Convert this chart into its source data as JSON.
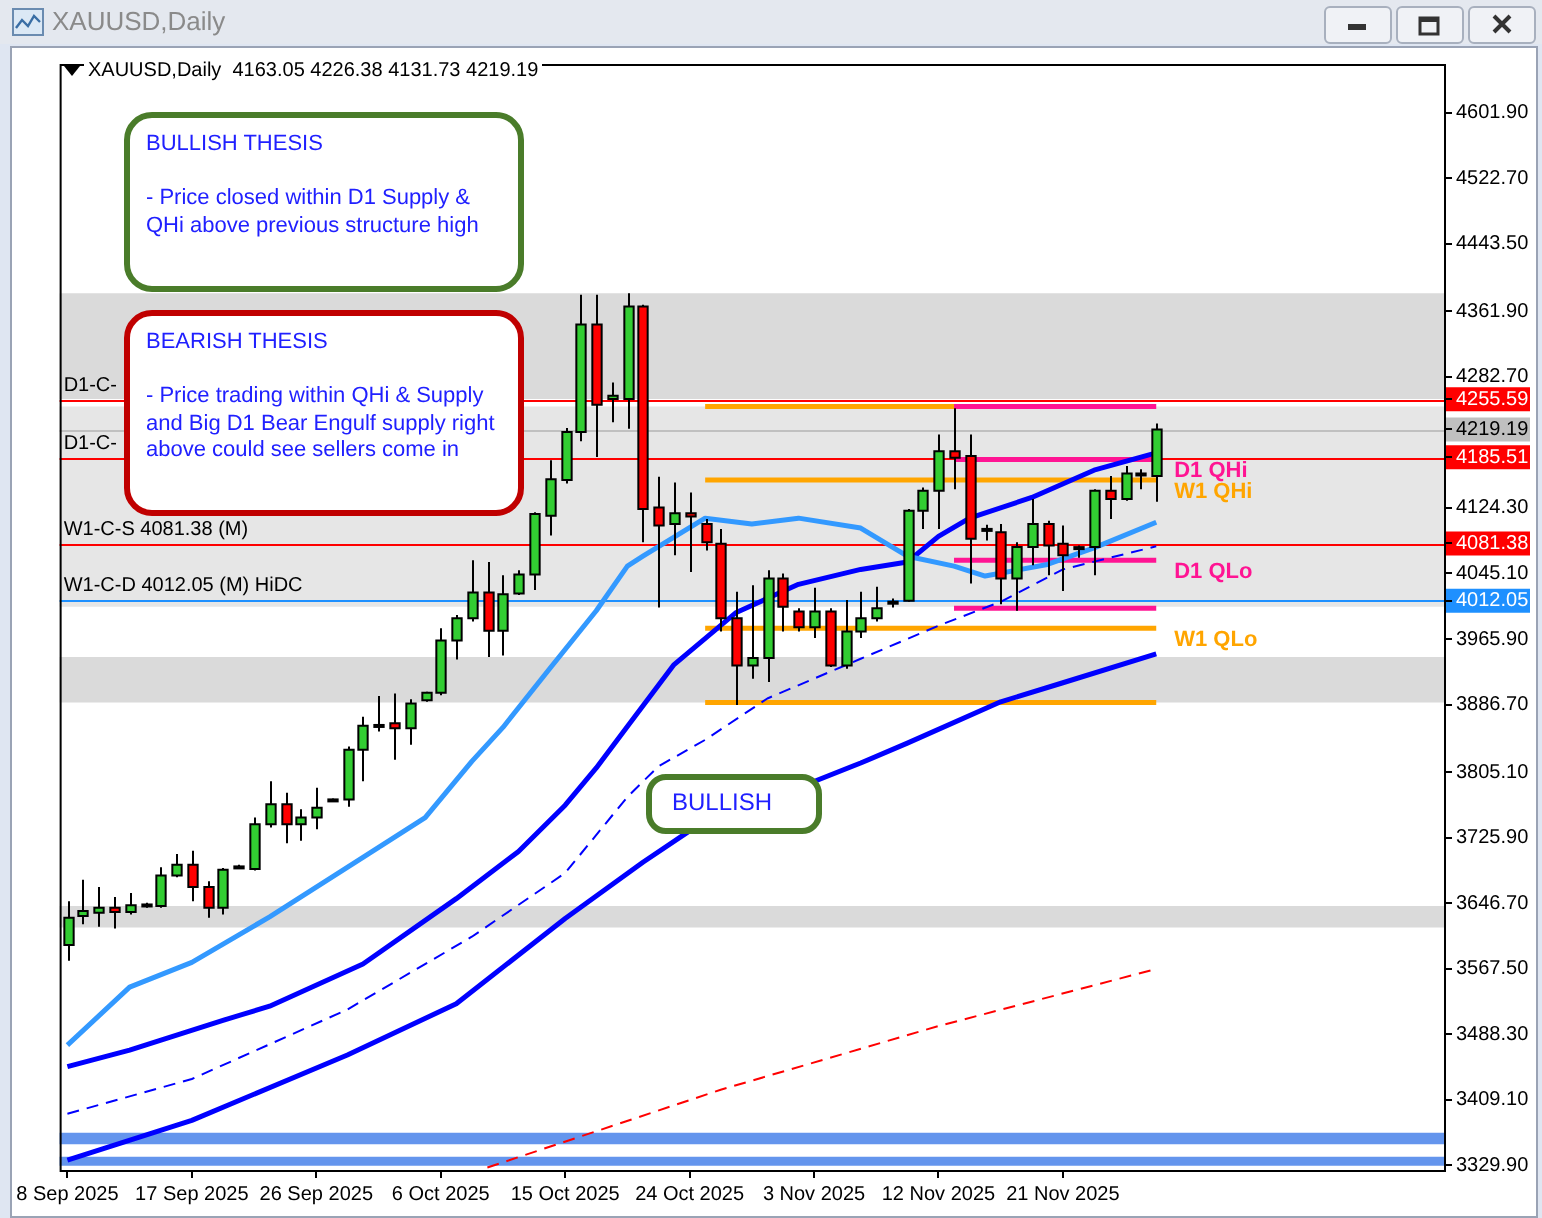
{
  "chart_data": {
    "type": "candlestick",
    "title": "XAUUSD,Daily",
    "subtitle": "4163.05 4226.38 4131.73 4219.19",
    "categories": [
      "8 Sep 2025",
      null,
      null,
      null,
      null,
      null,
      null,
      null,
      "17 Sep 2025",
      null,
      null,
      null,
      null,
      null,
      null,
      null,
      "26 Sep 2025",
      null,
      null,
      null,
      null,
      null,
      null,
      null,
      "6 Oct 2025",
      null,
      null,
      null,
      null,
      null,
      null,
      null,
      "15 Oct 2025",
      null,
      null,
      null,
      null,
      null,
      null,
      null,
      "24 Oct 2025",
      null,
      null,
      null,
      null,
      null,
      null,
      null,
      "3 Nov 2025",
      null,
      null,
      null,
      null,
      null,
      null,
      null,
      "12 Nov 2025",
      null,
      null,
      null,
      null,
      null,
      null,
      null,
      "21 Nov 2025",
      null,
      null,
      null,
      null,
      null,
      null,
      null,
      null,
      null,
      null,
      null,
      null,
      null,
      null,
      null,
      null,
      null,
      null,
      null,
      null,
      null,
      null,
      null,
      null
    ],
    "ohlc": [
      [
        3596,
        3649,
        3577,
        3629
      ],
      [
        3631,
        3675,
        3621,
        3637
      ],
      [
        3635,
        3666,
        3618,
        3641
      ],
      [
        3641,
        3654,
        3616,
        3636
      ],
      [
        3636,
        3659,
        3633,
        3644
      ],
      [
        3643,
        3647,
        3641,
        3645
      ],
      [
        3643,
        3690,
        3641,
        3680
      ],
      [
        3680,
        3706,
        3678,
        3693
      ],
      [
        3693,
        3710,
        3649,
        3666
      ],
      [
        3666,
        3673,
        3629,
        3641
      ],
      [
        3641,
        3689,
        3633,
        3687
      ],
      [
        3690,
        3693,
        3688,
        3691
      ],
      [
        3688,
        3750,
        3686,
        3742
      ],
      [
        3742,
        3794,
        3738,
        3766
      ],
      [
        3766,
        3780,
        3719,
        3742
      ],
      [
        3742,
        3760,
        3722,
        3750
      ],
      [
        3750,
        3786,
        3736,
        3762
      ],
      [
        3771,
        3773,
        3770,
        3772
      ],
      [
        3772,
        3836,
        3763,
        3832
      ],
      [
        3832,
        3872,
        3794,
        3861
      ],
      [
        3861,
        3897,
        3854,
        3862
      ],
      [
        3864,
        3900,
        3820,
        3858
      ],
      [
        3858,
        3893,
        3838,
        3888
      ],
      [
        3892,
        3902,
        3890,
        3901
      ],
      [
        3901,
        3979,
        3898,
        3964
      ],
      [
        3964,
        3995,
        3941,
        3991
      ],
      [
        3991,
        4061,
        3987,
        4022
      ],
      [
        4022,
        4059,
        3944,
        3976
      ],
      [
        3976,
        4043,
        3946,
        4020
      ],
      [
        4021,
        4049,
        4019,
        4044
      ],
      [
        4044,
        4119,
        4025,
        4117
      ],
      [
        4115,
        4182,
        4091,
        4159
      ],
      [
        4158,
        4221,
        4154,
        4216
      ],
      [
        4216,
        4382,
        4205,
        4346
      ],
      [
        4346,
        4382,
        4186,
        4249
      ],
      [
        4256,
        4276,
        4228,
        4260
      ],
      [
        4256,
        4384,
        4220,
        4368
      ],
      [
        4368,
        4370,
        4083,
        4123
      ],
      [
        4125,
        4162,
        4004,
        4103
      ],
      [
        4105,
        4155,
        4067,
        4118
      ],
      [
        4118,
        4143,
        4047,
        4114
      ],
      [
        4105,
        4111,
        4073,
        4083
      ],
      [
        4081,
        4099,
        3975,
        3991
      ],
      [
        3991,
        4023,
        3886,
        3934
      ],
      [
        3934,
        4031,
        3918,
        3943
      ],
      [
        3943,
        4049,
        3914,
        4039
      ],
      [
        4039,
        4045,
        3975,
        4005
      ],
      [
        3999,
        4003,
        3975,
        3980
      ],
      [
        3980,
        4028,
        3967,
        3999
      ],
      [
        3999,
        4003,
        3932,
        3934
      ],
      [
        3934,
        4013,
        3930,
        3975
      ],
      [
        3975,
        4023,
        3967,
        3991
      ],
      [
        3991,
        4029,
        3987,
        4003
      ],
      [
        4010,
        4015,
        4004,
        4011
      ],
      [
        4012,
        4123,
        4011,
        4121
      ],
      [
        4121,
        4149,
        4099,
        4145
      ],
      [
        4145,
        4213,
        4099,
        4193
      ],
      [
        4193,
        4245,
        4147,
        4185
      ],
      [
        4187,
        4213,
        4033,
        4087
      ],
      [
        4098,
        4104,
        4085,
        4099
      ],
      [
        4095,
        4105,
        4008,
        4039
      ],
      [
        4039,
        4083,
        4000,
        4077
      ],
      [
        4077,
        4135,
        4055,
        4105
      ],
      [
        4105,
        4109,
        4043,
        4079
      ],
      [
        4081,
        4103,
        4024,
        4067
      ],
      [
        4076,
        4079,
        4064,
        4077
      ],
      [
        4077,
        4147,
        4043,
        4145
      ],
      [
        4145,
        4163,
        4111,
        4135
      ],
      [
        4135,
        4175,
        4133,
        4166
      ],
      [
        4165,
        4171,
        4147,
        4166
      ],
      [
        4163.05,
        4226.38,
        4131.73,
        4219.19
      ],
      null,
      null,
      null,
      null,
      null,
      null,
      null,
      null,
      null,
      null,
      null,
      null,
      null,
      null,
      null,
      null,
      null,
      null
    ],
    "colors": [
      "#32cd32",
      "#32cd32",
      "#32cd32",
      "#ff0000",
      "#32cd32",
      "#000000",
      "#32cd32",
      "#32cd32",
      "#ff0000",
      "#ff0000",
      "#32cd32",
      "#000000",
      "#32cd32",
      "#32cd32",
      "#ff0000",
      "#32cd32",
      "#32cd32",
      "#000000",
      "#32cd32",
      "#32cd32",
      "#000000",
      "#ff0000",
      "#32cd32",
      "#32cd32",
      "#32cd32",
      "#32cd32",
      "#32cd32",
      "#ff0000",
      "#32cd32",
      "#32cd32",
      "#32cd32",
      "#32cd32",
      "#32cd32",
      "#32cd32",
      "#ff0000",
      "#32cd32",
      "#32cd32",
      "#ff0000",
      "#ff0000",
      "#32cd32",
      "#ff0000",
      "#ff0000",
      "#ff0000",
      "#ff0000",
      "#32cd32",
      "#32cd32",
      "#ff0000",
      "#ff0000",
      "#32cd32",
      "#ff0000",
      "#32cd32",
      "#32cd32",
      "#32cd32",
      "#000000",
      "#32cd32",
      "#32cd32",
      "#32cd32",
      "#ff0000",
      "#ff0000",
      "#000000",
      "#ff0000",
      "#32cd32",
      "#32cd32",
      "#ff0000",
      "#ff0000",
      "#000000",
      "#32cd32",
      "#ff0000",
      "#32cd32",
      "#000000",
      "#32cd32",
      null,
      null,
      null,
      null,
      null,
      null,
      null,
      null,
      null,
      null,
      null,
      null,
      null,
      null,
      null,
      null,
      null,
      null
    ],
    "series": [
      {
        "type": "line",
        "color": "#3399ff",
        "line_style": "solid",
        "values": [
          3475,
          null,
          null,
          null,
          3545,
          null,
          null,
          null,
          3575,
          null,
          null,
          null,
          null,
          3630,
          null,
          null,
          null,
          null,
          null,
          3702,
          null,
          null,
          null,
          3750,
          null,
          null,
          3818,
          null,
          3859,
          null,
          null,
          3930,
          null,
          null,
          4000,
          null,
          4054,
          4066,
          null,
          null,
          null,
          4112,
          null,
          null,
          4105,
          null,
          null,
          4112,
          null,
          null,
          null,
          4100,
          null,
          null,
          4066,
          null,
          null,
          4054,
          null,
          4042,
          null,
          null,
          null,
          4056,
          null,
          null,
          4076,
          null,
          null,
          null,
          4107,
          null,
          null,
          null,
          null,
          null,
          null,
          null,
          null,
          null,
          null,
          null,
          null,
          null,
          null,
          null,
          null,
          null,
          null
        ]
      },
      {
        "type": "line",
        "color": "#0000ff",
        "line_style": "solid",
        "values": [
          3449,
          null,
          null,
          null,
          3469,
          null,
          null,
          null,
          null,
          null,
          3505,
          null,
          null,
          3522,
          null,
          null,
          null,
          null,
          null,
          3573,
          null,
          null,
          null,
          null,
          null,
          3652,
          null,
          null,
          null,
          3709,
          null,
          null,
          3765,
          null,
          3810,
          null,
          3860,
          null,
          null,
          3935,
          null,
          null,
          null,
          3998,
          null,
          null,
          null,
          4032,
          null,
          null,
          null,
          4050,
          null,
          null,
          4059,
          null,
          4090,
          null,
          4112,
          null,
          null,
          null,
          4137,
          null,
          null,
          null,
          4170,
          null,
          null,
          null,
          4191,
          null,
          null,
          null,
          null,
          null,
          null,
          null,
          null,
          null,
          null,
          null,
          null,
          null,
          null,
          null,
          null,
          null,
          null
        ]
      },
      {
        "type": "line",
        "color": "#0000ff",
        "line_style": "dashed",
        "values": [
          3392,
          null,
          null,
          null,
          null,
          null,
          null,
          null,
          3434,
          null,
          null,
          null,
          null,
          null,
          null,
          null,
          null,
          null,
          3518,
          null,
          null,
          null,
          null,
          null,
          null,
          null,
          3606,
          null,
          null,
          null,
          null,
          null,
          3683,
          null,
          null,
          null,
          3775,
          null,
          3812,
          null,
          null,
          3844,
          null,
          null,
          null,
          3894,
          null,
          null,
          null,
          null,
          null,
          3942,
          null,
          null,
          null,
          null,
          3982,
          null,
          null,
          null,
          4011,
          null,
          null,
          null,
          4050,
          null,
          null,
          null,
          null,
          null,
          4078,
          null,
          null,
          null,
          null,
          null,
          null,
          null,
          null,
          null,
          null,
          null,
          null,
          null,
          null,
          null,
          null,
          null,
          null
        ]
      },
      {
        "type": "line",
        "color": "#0000ff",
        "line_style": "solid",
        "values": [
          3336,
          null,
          null,
          null,
          null,
          null,
          null,
          null,
          3384,
          null,
          null,
          null,
          null,
          null,
          null,
          null,
          null,
          null,
          3463,
          null,
          null,
          null,
          null,
          null,
          null,
          3525,
          null,
          null,
          null,
          null,
          null,
          null,
          3628,
          null,
          null,
          null,
          null,
          3696,
          null,
          null,
          3734,
          null,
          null,
          null,
          null,
          null,
          null,
          null,
          null,
          null,
          null,
          3816,
          null,
          null,
          3840,
          null,
          null,
          null,
          null,
          null,
          3890,
          null,
          null,
          null,
          3913,
          null,
          null,
          null,
          null,
          null,
          3948,
          null,
          null,
          null,
          null,
          null,
          null,
          null,
          null,
          null,
          null,
          null,
          null,
          null,
          null,
          null,
          null,
          null,
          null
        ]
      },
      {
        "type": "line",
        "color": "#ff0000",
        "line_style": "dashed",
        "values": [
          null,
          null,
          null,
          null,
          null,
          null,
          null,
          null,
          null,
          null,
          null,
          null,
          null,
          null,
          null,
          null,
          null,
          null,
          null,
          null,
          null,
          null,
          null,
          null,
          null,
          null,
          null,
          3327,
          null,
          null,
          null,
          null,
          null,
          null,
          null,
          null,
          null,
          null,
          null,
          null,
          null,
          null,
          3421,
          null,
          null,
          null,
          null,
          null,
          null,
          null,
          null,
          null,
          null,
          null,
          null,
          null,
          3498,
          null,
          null,
          null,
          null,
          null,
          null,
          null,
          null,
          null,
          null,
          null,
          null,
          null,
          3567,
          null,
          null,
          null,
          null,
          null,
          null,
          null,
          null,
          null,
          null,
          null,
          null,
          null,
          null,
          null,
          null,
          null,
          null
        ]
      },
      {
        "type": "line",
        "color": "#ffa500",
        "line_style": "solid",
        "values": [
          null,
          null,
          null,
          null,
          null,
          null,
          null,
          null,
          null,
          null,
          null,
          null,
          null,
          null,
          null,
          null,
          null,
          null,
          null,
          null,
          null,
          null,
          null,
          null,
          null,
          null,
          null,
          null,
          null,
          null,
          null,
          null,
          null,
          null,
          null,
          null,
          null,
          null,
          null,
          null,
          null,
          4247,
          null,
          null,
          null,
          null,
          null,
          null,
          null,
          null,
          null,
          null,
          null,
          null,
          null,
          null,
          null,
          4247,
          null,
          null,
          null,
          null,
          null,
          null,
          null,
          null,
          null,
          null,
          null,
          null,
          null,
          null,
          null,
          null,
          null,
          null,
          null,
          null,
          null,
          null,
          null,
          null,
          null,
          null,
          null,
          null,
          null,
          null,
          null
        ]
      },
      {
        "type": "line",
        "color": "#ff1493",
        "line_style": "solid",
        "values": [
          null,
          null,
          null,
          null,
          null,
          null,
          null,
          null,
          null,
          null,
          null,
          null,
          null,
          null,
          null,
          null,
          null,
          null,
          null,
          null,
          null,
          null,
          null,
          null,
          null,
          null,
          null,
          null,
          null,
          null,
          null,
          null,
          null,
          null,
          null,
          null,
          null,
          null,
          null,
          null,
          null,
          null,
          null,
          null,
          null,
          null,
          null,
          null,
          null,
          null,
          null,
          null,
          null,
          null,
          null,
          null,
          null,
          4247,
          null,
          null,
          null,
          null,
          null,
          null,
          null,
          null,
          null,
          null,
          null,
          null,
          4247,
          null,
          null,
          null,
          null,
          null,
          null,
          null,
          null,
          null,
          null,
          null,
          null,
          null,
          null,
          null,
          null,
          null,
          null
        ]
      },
      {
        "type": "line",
        "name": "D1 QHi",
        "color": "#ff1493",
        "line_style": "solid",
        "values": [
          null,
          null,
          null,
          null,
          null,
          null,
          null,
          null,
          null,
          null,
          null,
          null,
          null,
          null,
          null,
          null,
          null,
          null,
          null,
          null,
          null,
          null,
          null,
          null,
          null,
          null,
          null,
          null,
          null,
          null,
          null,
          null,
          null,
          null,
          null,
          null,
          null,
          null,
          null,
          null,
          null,
          null,
          null,
          null,
          null,
          null,
          null,
          null,
          null,
          null,
          null,
          null,
          null,
          null,
          null,
          null,
          null,
          4183,
          null,
          null,
          null,
          null,
          null,
          null,
          null,
          null,
          null,
          null,
          null,
          null,
          4183,
          null,
          null,
          null,
          null,
          null,
          null,
          null,
          null,
          null,
          null,
          null,
          null,
          null,
          null,
          null,
          null,
          null,
          null
        ]
      },
      {
        "type": "line",
        "name": "W1 QHi",
        "color": "#ffa500",
        "line_style": "solid",
        "values": [
          null,
          null,
          null,
          null,
          null,
          null,
          null,
          null,
          null,
          null,
          null,
          null,
          null,
          null,
          null,
          null,
          null,
          null,
          null,
          null,
          null,
          null,
          null,
          null,
          null,
          null,
          null,
          null,
          null,
          null,
          null,
          null,
          null,
          null,
          null,
          null,
          null,
          null,
          null,
          null,
          null,
          4158,
          null,
          null,
          null,
          null,
          null,
          null,
          null,
          null,
          null,
          null,
          null,
          null,
          null,
          null,
          null,
          null,
          null,
          null,
          null,
          null,
          null,
          null,
          null,
          null,
          null,
          null,
          null,
          null,
          4158,
          null,
          null,
          null,
          null,
          null,
          null,
          null,
          null,
          null,
          null,
          null,
          null,
          null,
          null,
          null,
          null,
          null,
          null
        ]
      },
      {
        "type": "line",
        "name": "D1 QLo",
        "color": "#ff1493",
        "line_style": "solid",
        "values": [
          null,
          null,
          null,
          null,
          null,
          null,
          null,
          null,
          null,
          null,
          null,
          null,
          null,
          null,
          null,
          null,
          null,
          null,
          null,
          null,
          null,
          null,
          null,
          null,
          null,
          null,
          null,
          null,
          null,
          null,
          null,
          null,
          null,
          null,
          null,
          null,
          null,
          null,
          null,
          null,
          null,
          null,
          null,
          null,
          null,
          null,
          null,
          null,
          null,
          null,
          null,
          null,
          null,
          null,
          null,
          null,
          null,
          4061,
          null,
          null,
          null,
          null,
          null,
          null,
          null,
          null,
          null,
          null,
          null,
          null,
          4061,
          null,
          null,
          null,
          null,
          null,
          null,
          null,
          null,
          null,
          null,
          null,
          null,
          null,
          null,
          null,
          null,
          null,
          null
        ]
      },
      {
        "type": "line",
        "color": "#ff1493",
        "line_style": "solid",
        "values": [
          null,
          null,
          null,
          null,
          null,
          null,
          null,
          null,
          null,
          null,
          null,
          null,
          null,
          null,
          null,
          null,
          null,
          null,
          null,
          null,
          null,
          null,
          null,
          null,
          null,
          null,
          null,
          null,
          null,
          null,
          null,
          null,
          null,
          null,
          null,
          null,
          null,
          null,
          null,
          null,
          null,
          null,
          null,
          null,
          null,
          null,
          null,
          null,
          null,
          null,
          null,
          null,
          null,
          null,
          null,
          null,
          null,
          4003,
          null,
          null,
          null,
          null,
          null,
          null,
          null,
          null,
          null,
          null,
          null,
          null,
          4003,
          null,
          null,
          null,
          null,
          null,
          null,
          null,
          null,
          null,
          null,
          null,
          null,
          null,
          null,
          null,
          null,
          null,
          null
        ]
      },
      {
        "type": "line",
        "name": "W1 QLo",
        "color": "#ffa500",
        "line_style": "solid",
        "values": [
          null,
          null,
          null,
          null,
          null,
          null,
          null,
          null,
          null,
          null,
          null,
          null,
          null,
          null,
          null,
          null,
          null,
          null,
          null,
          null,
          null,
          null,
          null,
          null,
          null,
          null,
          null,
          null,
          null,
          null,
          null,
          null,
          null,
          null,
          null,
          null,
          null,
          null,
          null,
          null,
          null,
          3979,
          null,
          null,
          null,
          null,
          null,
          null,
          null,
          null,
          null,
          null,
          null,
          null,
          null,
          null,
          null,
          null,
          null,
          null,
          null,
          null,
          null,
          null,
          null,
          null,
          null,
          null,
          null,
          null,
          3979,
          null,
          null,
          null,
          null,
          null,
          null,
          null,
          null,
          null,
          null,
          null,
          null,
          null,
          null,
          null,
          null,
          null,
          null
        ]
      },
      {
        "type": "line",
        "color": "#ffa500",
        "line_style": "solid",
        "values": [
          null,
          null,
          null,
          null,
          null,
          null,
          null,
          null,
          null,
          null,
          null,
          null,
          null,
          null,
          null,
          null,
          null,
          null,
          null,
          null,
          null,
          null,
          null,
          null,
          null,
          null,
          null,
          null,
          null,
          null,
          null,
          null,
          null,
          null,
          null,
          null,
          null,
          null,
          null,
          null,
          null,
          3889,
          null,
          null,
          null,
          null,
          null,
          null,
          null,
          null,
          null,
          null,
          null,
          null,
          null,
          null,
          null,
          null,
          null,
          null,
          null,
          null,
          null,
          null,
          null,
          null,
          null,
          null,
          null,
          null,
          3889,
          null,
          null,
          null,
          null,
          null,
          null,
          null,
          null,
          null,
          null,
          null,
          null,
          null,
          null,
          null,
          null,
          null,
          null
        ]
      }
    ],
    "ylim": [
      3324,
      4661
    ],
    "yticks": [
      {
        "value": 4601.9,
        "label": "4601.90"
      },
      {
        "value": 4522.7,
        "label": "4522.70"
      },
      {
        "value": 4443.5,
        "label": "4443.50"
      },
      {
        "value": 4361.9,
        "label": "4361.90"
      },
      {
        "value": 4282.7,
        "label": "4282.70"
      },
      4255.59,
      4219.19,
      4185.51,
      {
        "value": 4124.3,
        "label": "4124.30"
      },
      4081.38,
      {
        "value": 4045.1,
        "label": "4045.10"
      },
      4012.05,
      {
        "value": 3965.9,
        "label": "3965.90"
      },
      {
        "value": 3886.7,
        "label": "3886.70"
      },
      {
        "value": 3805.1,
        "label": "3805.10"
      },
      {
        "value": 3725.9,
        "label": "3725.90"
      },
      {
        "value": 3646.7,
        "label": "3646.70"
      },
      {
        "value": 3567.5,
        "label": "3567.50"
      },
      {
        "value": 3488.3,
        "label": "3488.30"
      },
      {
        "value": 3409.1,
        "label": "3409.10"
      },
      {
        "value": 3329.9,
        "label": "3329.90"
      }
    ],
    "grid": false,
    "ref_lines": [
      {
        "axis": "y",
        "value": 4255.59,
        "label": "D1-C-",
        "color": "#ff0000"
      },
      {
        "axis": "y",
        "value": 4219.19,
        "color": "#c0c0c0"
      },
      {
        "axis": "y",
        "value": 4185.51,
        "label": "D1-C-",
        "color": "#ff0000"
      },
      {
        "axis": "y",
        "value": 4081.38,
        "label": "W1-C-S 4081.38 (M)",
        "color": "#ff0000"
      },
      {
        "axis": "y",
        "value": 4012.05,
        "label": "W1-C-D 4012.05 (M) HiDC",
        "color": "#1e90ff"
      }
    ],
    "bands": [
      {
        "axis": "y",
        "from": 4256,
        "to": 4384,
        "color": "#dadada"
      },
      {
        "axis": "y",
        "from": 4005,
        "to": 4247,
        "color": "#e6e6e6"
      },
      {
        "axis": "y",
        "from": 3889,
        "to": 3944,
        "color": "#dadada"
      },
      {
        "axis": "y",
        "from": 3617,
        "to": 3643,
        "color": "#dadada"
      },
      {
        "axis": "y",
        "from": 3355,
        "to": 3369,
        "color": "#6495ed"
      },
      {
        "axis": "y",
        "from": 3329,
        "to": 3340,
        "color": "#6495ed"
      }
    ],
    "annotations": [
      "BULLISH THESIS\n\n- Price closed within D1 Supply & QHi above previous structure high",
      "BEARISH THESIS\n\n- Price trading within QHi & Supply and Big D1 Bear Engulf supply right above could see sellers come in",
      "BULLISH"
    ]
  }
}
